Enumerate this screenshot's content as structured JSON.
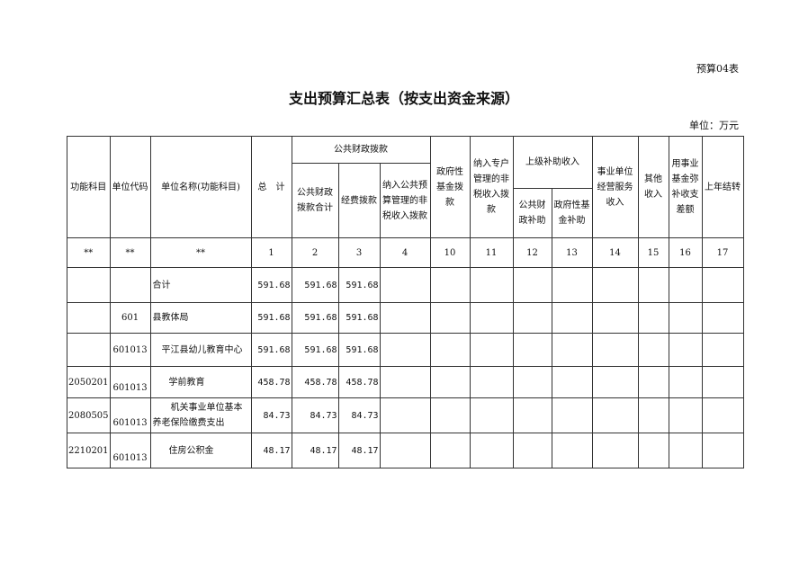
{
  "form_code": "预算04表",
  "title": "支出预算汇总表（按支出资金来源）",
  "unit": "单位：万元",
  "headers": {
    "func_subject": "功能科目",
    "unit_code": "单位代码",
    "unit_name": "单位名称(功能科目)",
    "total": "总　计",
    "public_finance": "公共财政拨款",
    "public_finance_total": "公共财政拨款合计",
    "funding": "经费拨款",
    "nontax_budget": "纳入公共预算管理的非税收入拨款",
    "gov_fund": "政府性基金拨款",
    "special_nontax": "纳入专户管理的非税收入拨款",
    "superior_subsidy": "上级补助收入",
    "public_subsidy": "公共财政补助",
    "gov_fund_subsidy": "政府性基金补助",
    "business_income": "事业单位经营服务收入",
    "other_income": "其他收入",
    "fund_offset": "用事业基金弥补收支差额",
    "carryover": "上年结转"
  },
  "index_row": [
    "**",
    "**",
    "**",
    "1",
    "2",
    "3",
    "4",
    "10",
    "11",
    "12",
    "13",
    "14",
    "15",
    "16",
    "17"
  ],
  "rows": [
    {
      "func": "",
      "code": "",
      "name": "合计",
      "total": "591.68",
      "pf_total": "591.68",
      "funding": "591.68"
    },
    {
      "func": "",
      "code": "601",
      "name": "县教体局",
      "total": "591.68",
      "pf_total": "591.68",
      "funding": "591.68"
    },
    {
      "func": "",
      "code": "601013",
      "name": "平江县幼儿教育中心",
      "total": "591.68",
      "pf_total": "591.68",
      "funding": "591.68"
    },
    {
      "func": "2050201",
      "code": "601013",
      "name": "学前教育",
      "total": "458.78",
      "pf_total": "458.78",
      "funding": "458.78"
    },
    {
      "func": "2080505",
      "code": "601013",
      "name": "机关事业单位基本养老保险缴费支出",
      "total": "84.73",
      "pf_total": "84.73",
      "funding": "84.73"
    },
    {
      "func": "2210201",
      "code": "601013",
      "name": "住房公积金",
      "total": "48.17",
      "pf_total": "48.17",
      "funding": "48.17"
    }
  ]
}
